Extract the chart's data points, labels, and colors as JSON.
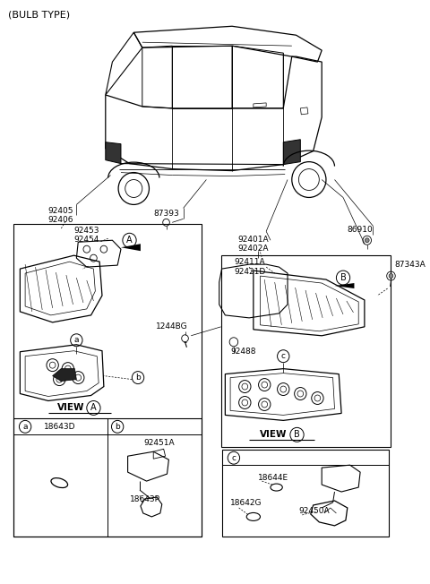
{
  "bg_color": "#ffffff",
  "lc": "#000000",
  "title": "(BULB TYPE)",
  "labels": {
    "92405_92406": "92405\n92406",
    "87393": "87393",
    "92453_92454": "92453\n92454",
    "92401A_92402A": "92401A\n92402A",
    "86910": "86910",
    "87343A": "87343A",
    "92411A_92421D": "92411A\n92421D",
    "1244BG": "1244BG",
    "92488": "92488",
    "18643D": "18643D",
    "92451A": "92451A",
    "18643P": "18643P",
    "18644E": "18644E",
    "18642G": "18642G",
    "92450A": "92450A"
  }
}
